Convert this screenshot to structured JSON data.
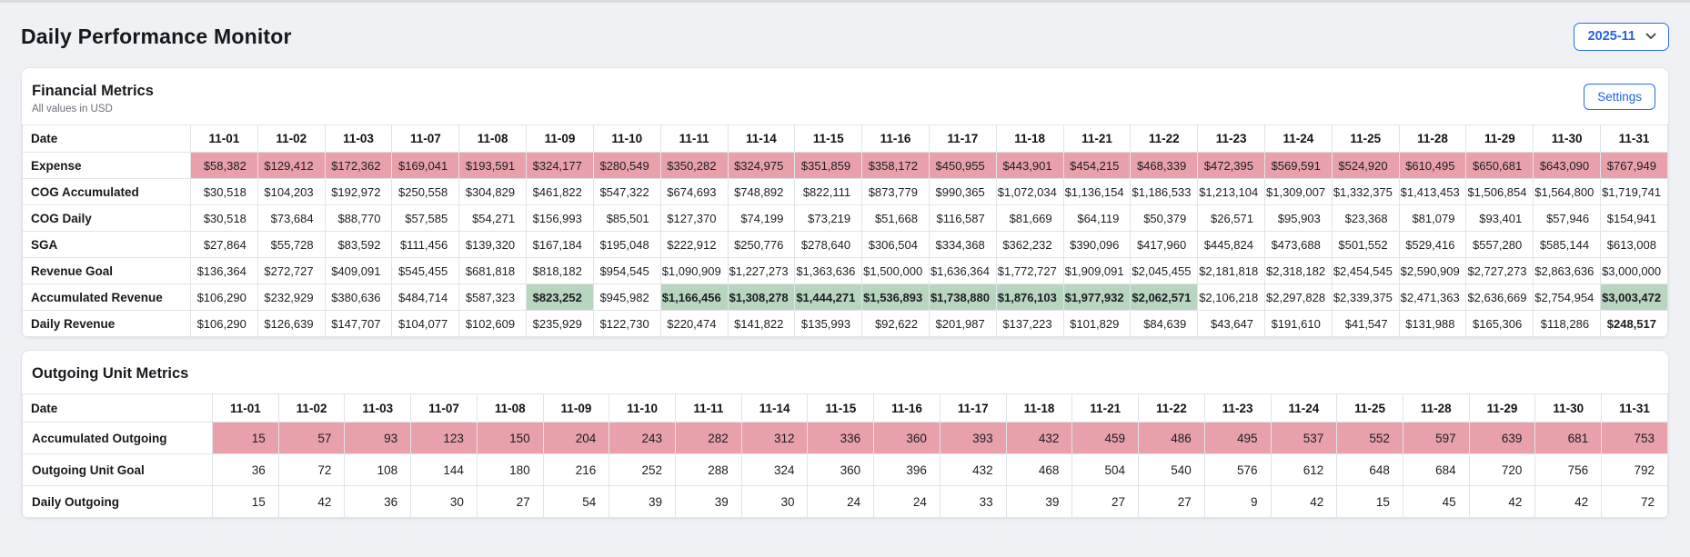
{
  "page": {
    "title": "Daily Performance Monitor",
    "month_selector": {
      "value": "2025-11"
    }
  },
  "colors": {
    "accent_blue": "#2e6bf0",
    "alert_pink_bg": "#e8a0aa",
    "success_green_bg": "#b8d5c0",
    "success_green_text": "#1a9a62"
  },
  "financial": {
    "title": "Financial Metrics",
    "subtitle": "All values in USD",
    "settings_label": "Settings",
    "date_header": "Date",
    "dates": [
      "11-01",
      "11-02",
      "11-03",
      "11-07",
      "11-08",
      "11-09",
      "11-10",
      "11-11",
      "11-14",
      "11-15",
      "11-16",
      "11-17",
      "11-18",
      "11-21",
      "11-22",
      "11-23",
      "11-24",
      "11-25",
      "11-28",
      "11-29",
      "11-30",
      "11-31"
    ],
    "rows": [
      {
        "label": "Expense",
        "pink_row": true,
        "values": [
          "$58,382",
          "$129,412",
          "$172,362",
          "$169,041",
          "$193,591",
          "$324,177",
          "$280,549",
          "$350,282",
          "$324,975",
          "$351,859",
          "$358,172",
          "$450,955",
          "$443,901",
          "$454,215",
          "$468,339",
          "$472,395",
          "$569,591",
          "$524,920",
          "$610,495",
          "$650,681",
          "$643,090",
          "$767,949"
        ]
      },
      {
        "label": "COG Accumulated",
        "values": [
          "$30,518",
          "$104,203",
          "$192,972",
          "$250,558",
          "$304,829",
          "$461,822",
          "$547,322",
          "$674,693",
          "$748,892",
          "$822,111",
          "$873,779",
          "$990,365",
          "$1,072,034",
          "$1,136,154",
          "$1,186,533",
          "$1,213,104",
          "$1,309,007",
          "$1,332,375",
          "$1,413,453",
          "$1,506,854",
          "$1,564,800",
          "$1,719,741"
        ]
      },
      {
        "label": "COG Daily",
        "values": [
          "$30,518",
          "$73,684",
          "$88,770",
          "$57,585",
          "$54,271",
          "$156,993",
          "$85,501",
          "$127,370",
          "$74,199",
          "$73,219",
          "$51,668",
          "$116,587",
          "$81,669",
          "$64,119",
          "$50,379",
          "$26,571",
          "$95,903",
          "$23,368",
          "$81,079",
          "$93,401",
          "$57,946",
          "$154,941"
        ]
      },
      {
        "label": "SGA",
        "values": [
          "$27,864",
          "$55,728",
          "$83,592",
          "$111,456",
          "$139,320",
          "$167,184",
          "$195,048",
          "$222,912",
          "$250,776",
          "$278,640",
          "$306,504",
          "$334,368",
          "$362,232",
          "$390,096",
          "$417,960",
          "$445,824",
          "$473,688",
          "$501,552",
          "$529,416",
          "$557,280",
          "$585,144",
          "$613,008"
        ]
      },
      {
        "label": "Revenue Goal",
        "values": [
          "$136,364",
          "$272,727",
          "$409,091",
          "$545,455",
          "$681,818",
          "$818,182",
          "$954,545",
          "$1,090,909",
          "$1,227,273",
          "$1,363,636",
          "$1,500,000",
          "$1,636,364",
          "$1,772,727",
          "$1,909,091",
          "$2,045,455",
          "$2,181,818",
          "$2,318,182",
          "$2,454,545",
          "$2,590,909",
          "$2,727,273",
          "$2,863,636",
          "$3,000,000"
        ]
      },
      {
        "label": "Accumulated Revenue",
        "green_cells": [
          5,
          7,
          8,
          9,
          10,
          11,
          12,
          13,
          14,
          21
        ],
        "values": [
          "$106,290",
          "$232,929",
          "$380,636",
          "$484,714",
          "$587,323",
          "$823,252",
          "$945,982",
          "$1,166,456",
          "$1,308,278",
          "$1,444,271",
          "$1,536,893",
          "$1,738,880",
          "$1,876,103",
          "$1,977,932",
          "$2,062,571",
          "$2,106,218",
          "$2,297,828",
          "$2,339,375",
          "$2,471,363",
          "$2,636,669",
          "$2,754,954",
          "$3,003,472"
        ]
      },
      {
        "label": "Daily Revenue",
        "green_text": [
          21
        ],
        "values": [
          "$106,290",
          "$126,639",
          "$147,707",
          "$104,077",
          "$102,609",
          "$235,929",
          "$122,730",
          "$220,474",
          "$141,822",
          "$135,993",
          "$92,622",
          "$201,987",
          "$137,223",
          "$101,829",
          "$84,639",
          "$43,647",
          "$191,610",
          "$41,547",
          "$131,988",
          "$165,306",
          "$118,286",
          "$248,517"
        ]
      }
    ]
  },
  "outgoing": {
    "title": "Outgoing Unit Metrics",
    "date_header": "Date",
    "dates": [
      "11-01",
      "11-02",
      "11-03",
      "11-07",
      "11-08",
      "11-09",
      "11-10",
      "11-11",
      "11-14",
      "11-15",
      "11-16",
      "11-17",
      "11-18",
      "11-21",
      "11-22",
      "11-23",
      "11-24",
      "11-25",
      "11-28",
      "11-29",
      "11-30",
      "11-31"
    ],
    "rows": [
      {
        "label": "Accumulated Outgoing",
        "pink_row": true,
        "values": [
          "15",
          "57",
          "93",
          "123",
          "150",
          "204",
          "243",
          "282",
          "312",
          "336",
          "360",
          "393",
          "432",
          "459",
          "486",
          "495",
          "537",
          "552",
          "597",
          "639",
          "681",
          "753"
        ]
      },
      {
        "label": "Outgoing Unit Goal",
        "values": [
          "36",
          "72",
          "108",
          "144",
          "180",
          "216",
          "252",
          "288",
          "324",
          "360",
          "396",
          "432",
          "468",
          "504",
          "540",
          "576",
          "612",
          "648",
          "684",
          "720",
          "756",
          "792"
        ]
      },
      {
        "label": "Daily Outgoing",
        "values": [
          "15",
          "42",
          "36",
          "30",
          "27",
          "54",
          "39",
          "39",
          "30",
          "24",
          "24",
          "33",
          "39",
          "27",
          "27",
          "9",
          "42",
          "15",
          "45",
          "42",
          "42",
          "72"
        ]
      }
    ]
  }
}
